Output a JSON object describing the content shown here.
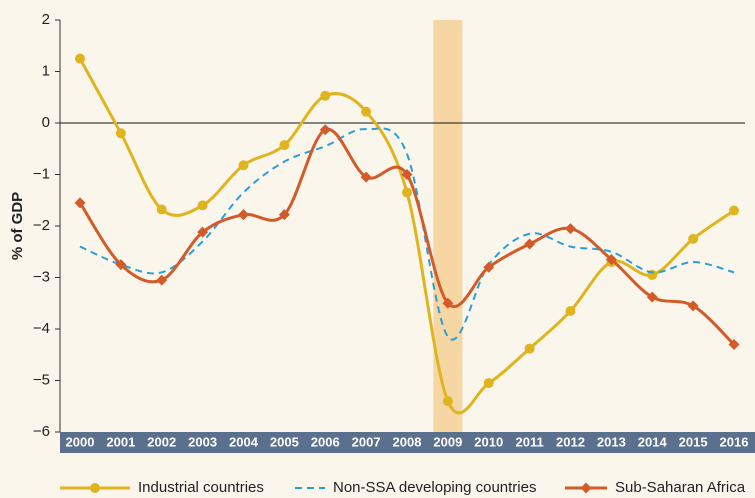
{
  "chart_data": {
    "type": "line",
    "y_label": "% of GDP",
    "categories": [
      "2000",
      "2001",
      "2002",
      "2003",
      "2004",
      "2005",
      "2006",
      "2007",
      "2008",
      "2009",
      "2010",
      "2011",
      "2012",
      "2013",
      "2014",
      "2015",
      "2016"
    ],
    "highlight_category": "2009",
    "highlight_color": "#f6d6a2",
    "ylim": [
      -6,
      2
    ],
    "yticks": [
      {
        "value": -6,
        "label": "−6"
      },
      {
        "value": -5,
        "label": "−5"
      },
      {
        "value": -4,
        "label": "−4"
      },
      {
        "value": -3,
        "label": "−3"
      },
      {
        "value": -2,
        "label": "−2"
      },
      {
        "value": -1,
        "label": "−1"
      },
      0,
      1,
      2
    ],
    "series": [
      {
        "name": "Industrial countries",
        "color": "#e0b41e",
        "marker": "circle",
        "values": [
          1.25,
          -0.2,
          -1.68,
          -1.6,
          -0.82,
          -0.43,
          0.53,
          0.22,
          -1.35,
          -5.4,
          -5.05,
          -4.38,
          -3.65,
          -2.7,
          -2.95,
          -2.25,
          -1.7
        ]
      },
      {
        "name": "Non-SSA developing countries",
        "color": "#2a9fd6",
        "dashed": true,
        "values": [
          -2.4,
          -2.75,
          -2.9,
          -2.3,
          -1.35,
          -0.75,
          -0.45,
          -0.12,
          -0.6,
          -4.15,
          -2.75,
          -2.15,
          -2.4,
          -2.5,
          -2.9,
          -2.7,
          -2.9
        ]
      },
      {
        "name": "Sub-Saharan Africa",
        "color": "#d35b2a",
        "marker": "diamond",
        "values": [
          -1.55,
          -2.75,
          -3.05,
          -2.12,
          -1.78,
          -1.78,
          -0.13,
          -1.05,
          -1.0,
          -3.5,
          -2.8,
          -2.35,
          -2.05,
          -2.65,
          -3.38,
          -3.55,
          -4.3
        ]
      }
    ]
  }
}
